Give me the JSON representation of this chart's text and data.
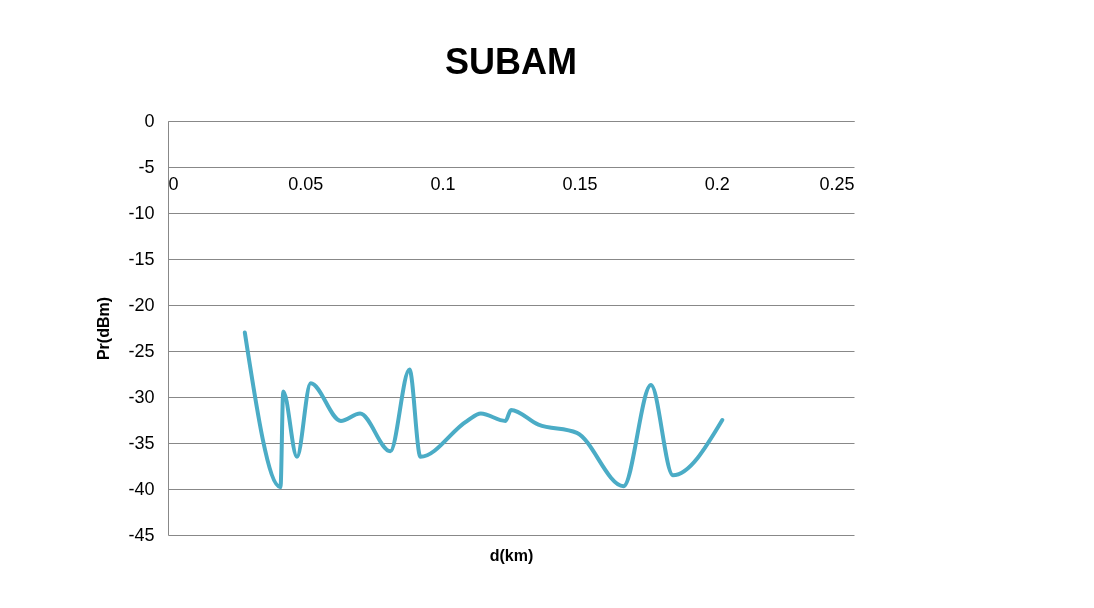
{
  "chart_data": {
    "type": "line",
    "title": "SUBAM",
    "xlabel": "d(km)",
    "ylabel": "Pr(dBm)",
    "x": [
      0.028,
      0.041,
      0.042,
      0.047,
      0.052,
      0.063,
      0.07,
      0.081,
      0.088,
      0.092,
      0.109,
      0.114,
      0.123,
      0.125,
      0.135,
      0.149,
      0.166,
      0.176,
      0.184,
      0.202
    ],
    "series": [
      {
        "color": "#4bacc6",
        "values": [
          -23,
          -39.8,
          -29.4,
          -36.5,
          -28.5,
          -32.6,
          -31.8,
          -35.9,
          -27,
          -36.5,
          -32.6,
          -31.8,
          -32.6,
          -31.4,
          -33,
          -33.9,
          -39.7,
          -28.7,
          -38.5,
          -32.5
        ]
      }
    ],
    "xlim": [
      0,
      0.25
    ],
    "xticks": [
      0,
      0.05,
      0.1,
      0.15,
      0.2,
      0.25
    ],
    "ylim": [
      -45,
      0
    ],
    "yticks": [
      -45,
      -40,
      -35,
      -30,
      -25,
      -20,
      -15,
      -10,
      -5,
      0
    ],
    "grid": "y",
    "marker": "none",
    "line_style": "solid"
  }
}
